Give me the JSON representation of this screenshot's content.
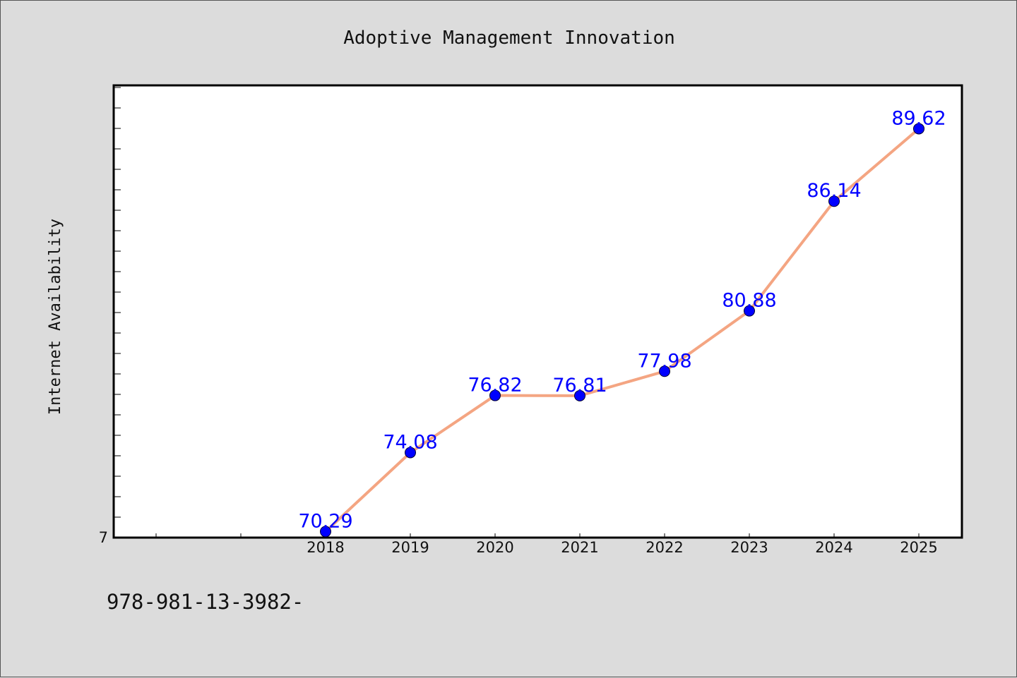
{
  "chart_data": {
    "type": "line",
    "title": "Adoptive Management Innovation",
    "xlabel": "",
    "ylabel": "Internet Availability",
    "x": [
      "2018",
      "2019",
      "2020",
      "2021",
      "2022",
      "2023",
      "2024",
      "2025"
    ],
    "series": [
      {
        "values": [
          70.29,
          74.08,
          76.82,
          76.81,
          77.98,
          80.88,
          86.14,
          89.62
        ],
        "labels": [
          "70.29",
          "74.08",
          "76.82",
          "76.81",
          "77.98",
          "80.88",
          "86.14",
          "89.62"
        ]
      }
    ],
    "y_tick_label": "7",
    "ylim": [
      70.0,
      91.7
    ],
    "grid": false,
    "legend": "none",
    "colors": {
      "line": "#f4a582",
      "marker": "#0000ff",
      "data_label": "#0000ff",
      "background": "#dcdcdc",
      "plot_area": "#ffffff"
    }
  },
  "footer": {
    "text": "978-981-13-3982-"
  }
}
